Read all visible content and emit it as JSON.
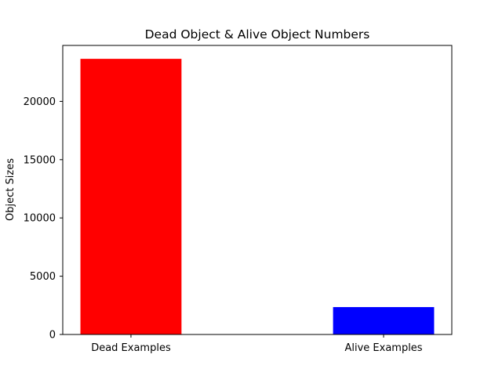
{
  "chart_data": {
    "type": "bar",
    "title": "Dead Object & Alive Object Numbers",
    "xlabel": "",
    "ylabel": "Object Sizes",
    "categories": [
      "Dead Examples",
      "Alive Examples"
    ],
    "values": [
      23650,
      2350
    ],
    "colors": [
      "#ff0000",
      "#0000ff"
    ],
    "ylim": [
      0,
      24800
    ],
    "yticks": [
      0,
      5000,
      10000,
      15000,
      20000
    ],
    "ytick_labels": [
      "0",
      "5000",
      "10000",
      "15000",
      "20000"
    ],
    "grid": false,
    "legend": "none"
  }
}
